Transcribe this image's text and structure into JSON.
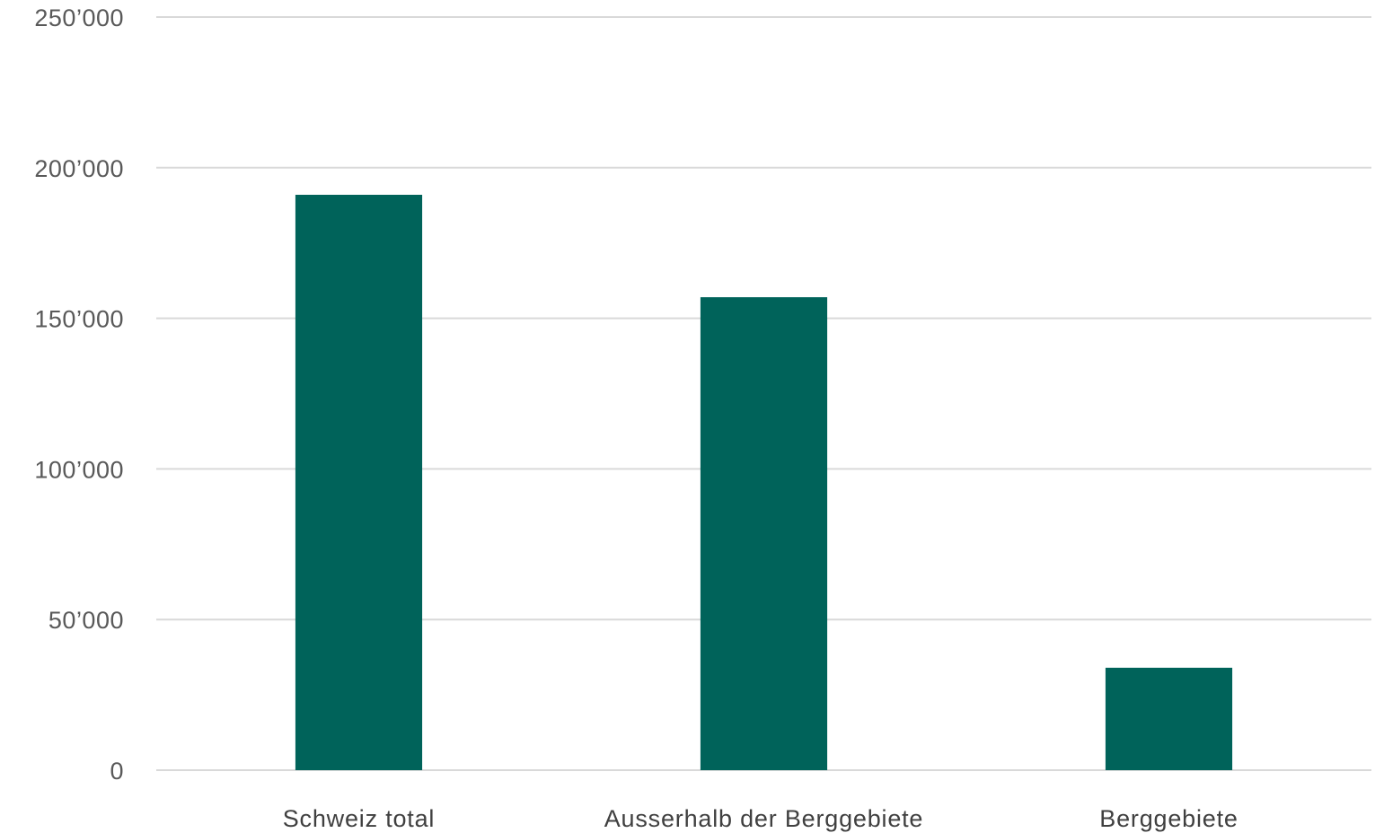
{
  "chart_data": {
    "type": "bar",
    "categories": [
      "Schweiz total",
      "Ausserhalb der Berggebiete",
      "Berggebiete"
    ],
    "values": [
      191000,
      157000,
      34000
    ],
    "yticks": [
      0,
      50000,
      100000,
      150000,
      200000,
      250000
    ],
    "ytick_labels": [
      "0",
      "50’000",
      "100’000",
      "150’000",
      "200’000",
      "250’000"
    ],
    "ylim": [
      0,
      250000
    ],
    "title": "",
    "xlabel": "",
    "ylabel": "",
    "grid": true,
    "legend": "none",
    "bar_color": "#00635a",
    "grid_color": "#d9d9d9"
  }
}
